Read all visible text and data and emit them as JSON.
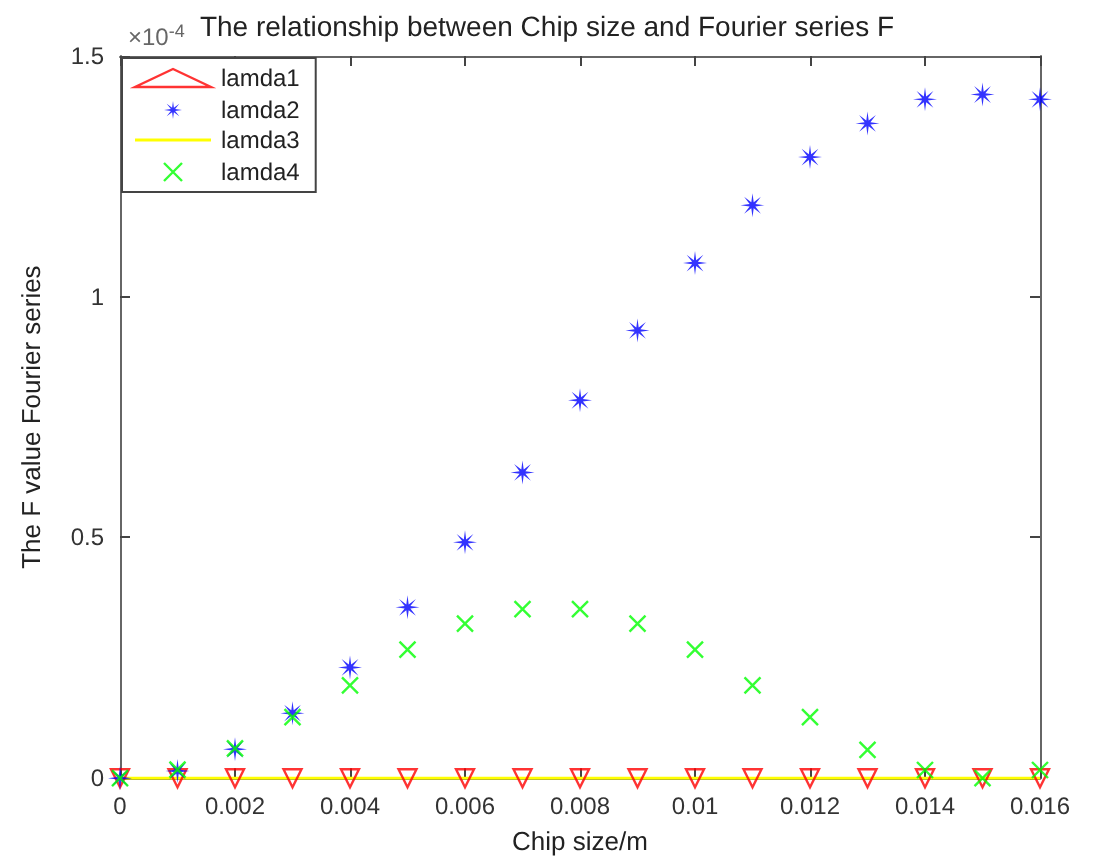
{
  "chart_data": {
    "type": "scatter",
    "title": "The relationship between Chip size and Fourier series F",
    "xlabel": "Chip size/m",
    "ylabel": "The F value Fourier series",
    "annotations": [
      "×10$^{-4}$"
    ],
    "x": [
      0,
      0.001,
      0.002,
      0.003,
      0.004,
      0.005,
      0.006,
      0.007,
      0.008,
      0.009,
      0.01,
      0.011,
      0.012,
      0.013,
      0.014,
      0.015,
      0.016
    ],
    "series": [
      {
        "name": "lamda1",
        "color": "#ff0000",
        "marker": "triangle",
        "values": [
          0,
          0,
          0,
          0,
          0,
          0,
          0,
          0,
          0,
          0,
          0,
          0,
          0,
          0,
          0,
          0,
          0
        ]
      },
      {
        "name": "lamda2",
        "color": "#0000ff",
        "marker": "star",
        "values": [
          0,
          0.015,
          0.06,
          0.135,
          0.23,
          0.355,
          0.49,
          0.635,
          0.785,
          0.93,
          1.07,
          1.19,
          1.29,
          1.36,
          1.41,
          1.42,
          1.41
        ]
      },
      {
        "name": "lamda3",
        "color": "#ffff00",
        "type": "line",
        "marker": "none",
        "values": [
          0,
          0,
          0,
          0,
          0,
          0,
          0,
          0,
          0,
          0,
          0,
          0,
          0,
          0,
          0,
          0,
          0
        ]
      },
      {
        "name": "lamda4",
        "color": "#00ff00",
        "marker": "cross",
        "values": [
          0,
          0.018,
          0.062,
          0.127,
          0.193,
          0.267,
          0.321,
          0.351,
          0.351,
          0.321,
          0.267,
          0.193,
          0.127,
          0.059,
          0.017,
          0,
          0.017
        ]
      }
    ],
    "xlim": [
      0,
      0.016
    ],
    "xticks": [
      0,
      0.002,
      0.004,
      0.006,
      0.008,
      0.01,
      0.012,
      0.014,
      0.016
    ],
    "ylim": [
      0,
      1.5
    ],
    "yticks": [
      0,
      0.5,
      1,
      1.5
    ],
    "legend": "top left",
    "grid": false
  }
}
